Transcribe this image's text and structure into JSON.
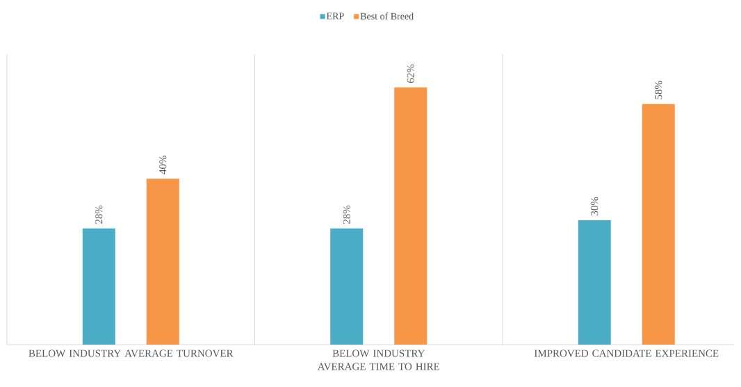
{
  "chart_data": {
    "type": "bar",
    "categories": [
      "BELOW INDUSTRY AVERAGE TURNOVER",
      "BELOW INDUSTRY AVERAGE TIME TO HIRE",
      "IMPROVED CANDIDATE EXPERIENCE"
    ],
    "series": [
      {
        "name": "ERP",
        "color": "#4bacc6",
        "values": [
          28,
          28,
          30
        ],
        "value_labels": [
          "28%",
          "28%",
          "30%"
        ]
      },
      {
        "name": "Best of Breed",
        "color": "#f79646",
        "values": [
          40,
          62,
          58
        ],
        "value_labels": [
          "40%",
          "62%",
          "58%"
        ]
      }
    ],
    "ylim": [
      0,
      70
    ],
    "grid": "x",
    "legend": "top"
  }
}
